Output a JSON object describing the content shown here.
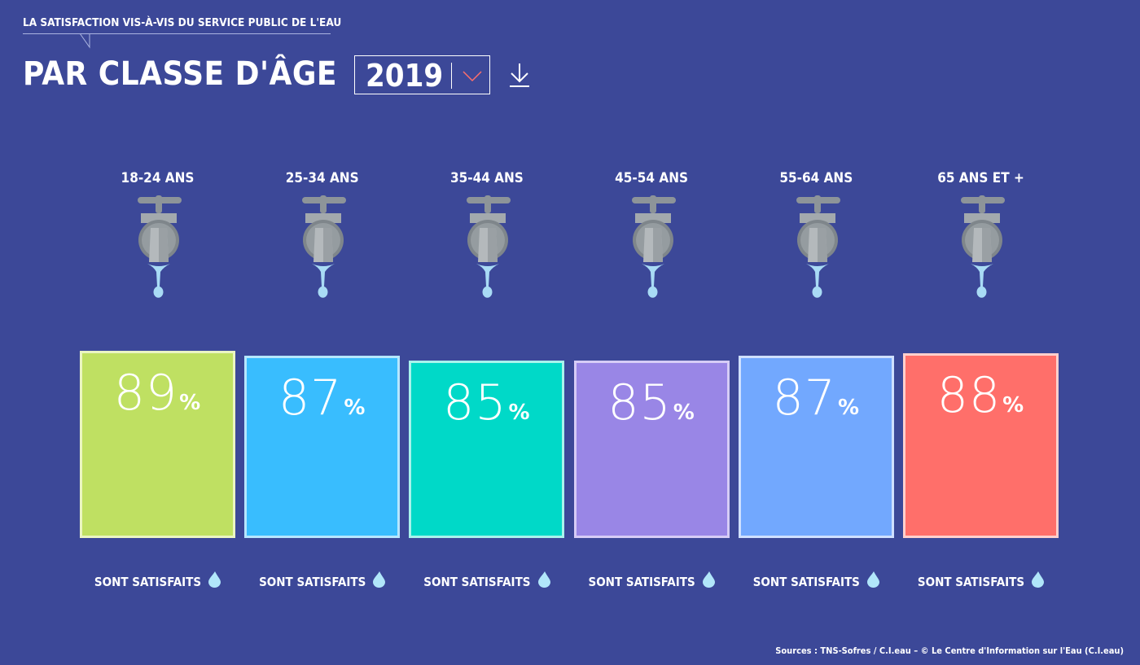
{
  "header": {
    "kicker": "LA SATISFACTION VIS-À-VIS DU SERVICE PUBLIC DE L'EAU",
    "title": "PAR CLASSE D'ÂGE",
    "year_select": "2019",
    "download_icon": "download-arrow-icon"
  },
  "chart_data": {
    "type": "bar",
    "categories": [
      "18-24 ANS",
      "25-34 ANS",
      "35-44 ANS",
      "45-54 ANS",
      "55-64 ANS",
      "65 ANS ET +"
    ],
    "values": [
      89,
      87,
      85,
      85,
      87,
      88
    ],
    "unit": "%",
    "value_label": "SONT SATISFAITS",
    "colors": [
      "#bfe062",
      "#39bdfe",
      "#00d9c8",
      "#9986e6",
      "#72a8fe",
      "#ff6f6a"
    ],
    "border_colors": [
      "#eaf5c2",
      "#b6e7ff",
      "#a8f3ec",
      "#d6ccf6",
      "#cfe0ff",
      "#ffd0cd"
    ]
  },
  "footer": {
    "source": "Sources : TNS-Sofres / C.I.eau – © Le Centre d'Information sur l'Eau (C.I.eau)"
  }
}
